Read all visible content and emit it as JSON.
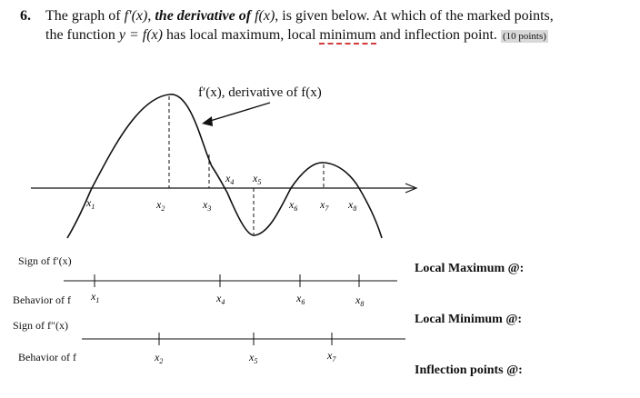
{
  "question": {
    "number": "6.",
    "line1_a": "The graph of ",
    "fprime": "f′(x)",
    "line1_b": ", ",
    "line1_bold": "the derivative of",
    "line1_c": " ",
    "fx": "f(x)",
    "line1_d": ", is given below. At which of the marked points,",
    "line2_a": "the function ",
    "yfx": "y = f(x)",
    "line2_b": " has local maximum, local ",
    "line2_underlined": "minimum",
    "line2_c": " and inflection point.",
    "points": "(10 points)"
  },
  "graph": {
    "curve_label": "f′(x), derivative of  f(x)",
    "x_labels": [
      "x1",
      "x2",
      "x3",
      "x4",
      "x5",
      "x6",
      "x7",
      "x8"
    ]
  },
  "rows": {
    "sign_fprime": "Sign of  f′(x)",
    "behavior_f_1": "Behavior of f",
    "sign_fdoubleprime": "Sign of  f″(x)",
    "behavior_f_2": "Behavior of f",
    "line1_marks": [
      "x1",
      "x4",
      "x6",
      "x8"
    ],
    "line2_marks": [
      "x2",
      "x5",
      "x7"
    ]
  },
  "answers": {
    "local_max": "Local Maximum @:",
    "local_min": "Local Minimum @:",
    "inflection": "Inflection points @:"
  }
}
